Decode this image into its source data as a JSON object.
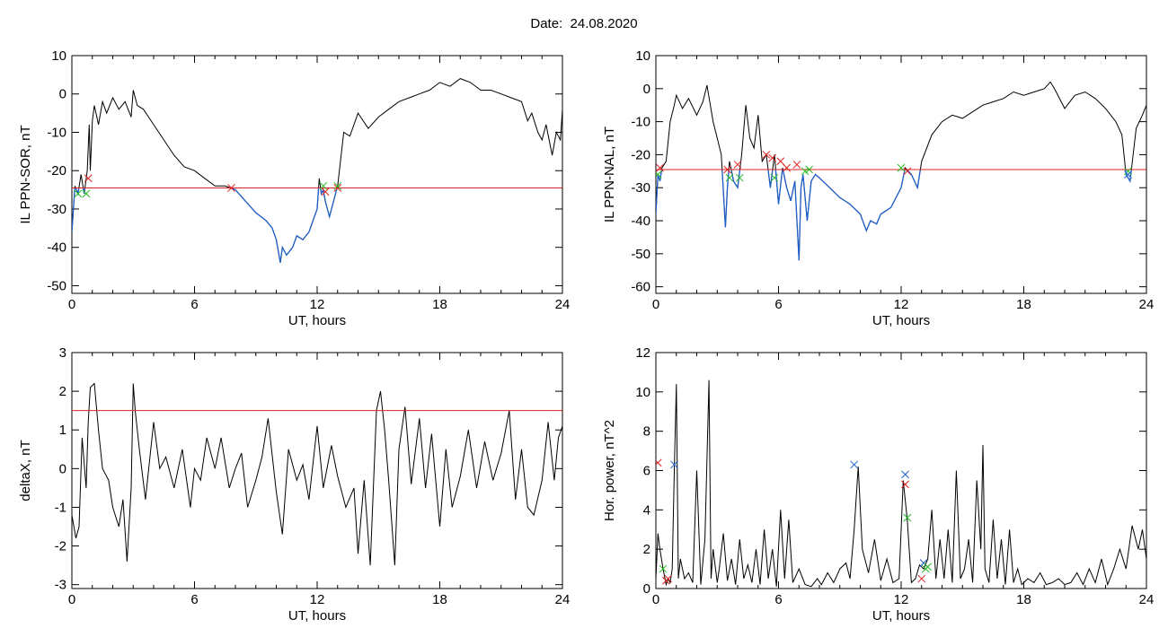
{
  "page": {
    "title": "Date:  24.08.2020"
  },
  "colors": {
    "trace": "#000000",
    "below": "#1f5fc8",
    "threshold": "#e02020",
    "mark_red": "#e02020",
    "mark_green": "#22bb22",
    "mark_blue": "#2060d0"
  },
  "chart_data": [
    {
      "id": "p1",
      "type": "line",
      "ylabel": "IL PPN-SOR, nT",
      "xlabel": "UT, hours",
      "xlim": [
        0,
        24
      ],
      "xticks": [
        0,
        6,
        12,
        18,
        24
      ],
      "ylim": [
        -52,
        10
      ],
      "yticks": [
        10,
        0,
        -10,
        -20,
        -30,
        -40,
        -50
      ],
      "threshold": -24.5,
      "below_color": "blue",
      "series": [
        {
          "x": [
            0,
            0.15,
            0.3,
            0.45,
            0.6,
            0.75,
            0.85,
            0.9,
            1.0,
            1.1,
            1.3,
            1.5,
            1.7,
            2.0,
            2.3,
            2.6,
            2.9,
            3.0,
            3.2,
            3.5,
            4.0,
            4.5,
            5.0,
            5.5,
            6.0,
            6.5,
            7.0,
            7.5,
            8.0,
            8.5,
            9.0,
            9.5,
            9.8,
            10.0,
            10.2,
            10.3,
            10.5,
            10.8,
            11.0,
            11.3,
            11.6,
            11.8,
            12.0,
            12.1,
            12.2,
            12.3,
            12.4,
            12.5,
            12.6,
            12.8,
            13.0,
            13.3,
            13.6,
            14.0,
            14.5,
            15.0,
            15.5,
            16.0,
            16.5,
            17.0,
            17.5,
            18.0,
            18.5,
            19.0,
            19.5,
            20.0,
            20.5,
            21.0,
            21.5,
            22.0,
            22.3,
            22.5,
            22.8,
            23.0,
            23.2,
            23.5,
            23.7,
            23.9,
            24.0
          ],
          "y": [
            -36,
            -24,
            -26,
            -21,
            -26,
            -20,
            -8,
            -20,
            -7,
            -3,
            -8,
            -2,
            -5,
            -1,
            -4,
            -2,
            -6,
            1,
            -3,
            -4,
            -8,
            -12,
            -16,
            -19,
            -20,
            -22,
            -24,
            -24,
            -25,
            -28,
            -31,
            -33,
            -35,
            -38,
            -44,
            -40,
            -42,
            -40,
            -37,
            -38,
            -36,
            -33,
            -30,
            -22,
            -26,
            -25,
            -28,
            -30,
            -32,
            -28,
            -24,
            -10,
            -11,
            -5,
            -9,
            -6,
            -4,
            -2,
            -1,
            0,
            1,
            3,
            2,
            4,
            3,
            1,
            1,
            0,
            -1,
            -2,
            -7,
            -5,
            -10,
            -12,
            -8,
            -16,
            -10,
            -12,
            -4
          ]
        }
      ],
      "markers": [
        {
          "x": 0.3,
          "y": -26,
          "color": "green"
        },
        {
          "x": 0.7,
          "y": -26,
          "color": "green"
        },
        {
          "x": 0.8,
          "y": -22,
          "color": "red"
        },
        {
          "x": 7.8,
          "y": -24.5,
          "color": "red"
        },
        {
          "x": 12.4,
          "y": -25.5,
          "color": "red"
        },
        {
          "x": 12.3,
          "y": -24,
          "color": "green"
        },
        {
          "x": 13.0,
          "y": -24.5,
          "color": "red"
        },
        {
          "x": 13.0,
          "y": -24,
          "color": "green"
        }
      ]
    },
    {
      "id": "p2",
      "type": "line",
      "ylabel": "IL PPN-NAL, nT",
      "xlabel": "UT, hours",
      "xlim": [
        0,
        24
      ],
      "xticks": [
        0,
        6,
        12,
        18,
        24
      ],
      "ylim": [
        -62,
        10
      ],
      "yticks": [
        10,
        0,
        -10,
        -20,
        -30,
        -40,
        -50,
        -60
      ],
      "threshold": -24.5,
      "below_color": "blue",
      "series": [
        {
          "x": [
            0,
            0.1,
            0.2,
            0.3,
            0.5,
            0.7,
            0.9,
            1.0,
            1.3,
            1.6,
            2.0,
            2.3,
            2.5,
            2.8,
            3.0,
            3.2,
            3.4,
            3.5,
            3.6,
            3.8,
            4.0,
            4.2,
            4.4,
            4.6,
            4.8,
            5.0,
            5.2,
            5.4,
            5.6,
            5.8,
            6.0,
            6.2,
            6.4,
            6.6,
            6.8,
            7.0,
            7.1,
            7.2,
            7.4,
            7.6,
            7.8,
            8.0,
            8.5,
            9.0,
            9.5,
            10.0,
            10.3,
            10.5,
            10.8,
            11.0,
            11.5,
            12.0,
            12.2,
            12.5,
            12.8,
            13.0,
            13.5,
            14.0,
            14.5,
            15.0,
            15.5,
            16.0,
            16.5,
            17.0,
            17.5,
            18.0,
            18.5,
            19.0,
            19.3,
            19.5,
            20.0,
            20.5,
            21.0,
            21.5,
            22.0,
            22.5,
            22.8,
            23.0,
            23.2,
            23.5,
            23.8,
            24.0
          ],
          "y": [
            -38,
            -26,
            -28,
            -24,
            -22,
            -10,
            -5,
            -2,
            -6,
            -3,
            -8,
            -4,
            1,
            -10,
            -15,
            -20,
            -42,
            -30,
            -22,
            -28,
            -30,
            -20,
            -5,
            -15,
            -18,
            -8,
            -22,
            -20,
            -30,
            -20,
            -35,
            -24,
            -30,
            -34,
            -28,
            -52,
            -30,
            -26,
            -40,
            -28,
            -26,
            -27,
            -30,
            -33,
            -35,
            -38,
            -43,
            -40,
            -41,
            -38,
            -36,
            -30,
            -24,
            -26,
            -30,
            -22,
            -14,
            -10,
            -8,
            -9,
            -7,
            -5,
            -4,
            -3,
            -1,
            -2,
            -1,
            0,
            2,
            0,
            -6,
            -2,
            -1,
            -3,
            -6,
            -10,
            -14,
            -26,
            -28,
            -12,
            -8,
            -5
          ]
        }
      ],
      "markers": [
        {
          "x": 0.1,
          "y": -26,
          "color": "green"
        },
        {
          "x": 0.2,
          "y": -24,
          "color": "red"
        },
        {
          "x": 3.5,
          "y": -24.5,
          "color": "red"
        },
        {
          "x": 3.6,
          "y": -27,
          "color": "green"
        },
        {
          "x": 4.0,
          "y": -23,
          "color": "red"
        },
        {
          "x": 4.1,
          "y": -27,
          "color": "green"
        },
        {
          "x": 5.4,
          "y": -20,
          "color": "red"
        },
        {
          "x": 5.7,
          "y": -21,
          "color": "red"
        },
        {
          "x": 5.8,
          "y": -27,
          "color": "green"
        },
        {
          "x": 6.1,
          "y": -22,
          "color": "red"
        },
        {
          "x": 6.4,
          "y": -24,
          "color": "red"
        },
        {
          "x": 6.9,
          "y": -23,
          "color": "red"
        },
        {
          "x": 7.3,
          "y": -25,
          "color": "green"
        },
        {
          "x": 7.5,
          "y": -24.5,
          "color": "green"
        },
        {
          "x": 12.0,
          "y": -24,
          "color": "green"
        },
        {
          "x": 12.3,
          "y": -25,
          "color": "red"
        },
        {
          "x": 23.1,
          "y": -25,
          "color": "green"
        },
        {
          "x": 23.1,
          "y": -26,
          "color": "blue"
        }
      ]
    },
    {
      "id": "p3",
      "type": "line",
      "ylabel": "deltaX, nT",
      "xlabel": "UT, hours",
      "xlim": [
        0,
        24
      ],
      "xticks": [
        0,
        6,
        12,
        18,
        24
      ],
      "ylim": [
        -3.1,
        3
      ],
      "yticks": [
        3,
        2,
        1,
        0,
        -1,
        -2,
        -3
      ],
      "threshold": 1.5,
      "below_color": "none",
      "series": [
        {
          "x": [
            0,
            0.2,
            0.35,
            0.5,
            0.7,
            0.8,
            0.9,
            1.1,
            1.3,
            1.5,
            1.8,
            2.0,
            2.3,
            2.5,
            2.7,
            2.9,
            3.0,
            3.1,
            3.3,
            3.6,
            4.0,
            4.3,
            4.6,
            5.0,
            5.4,
            5.8,
            6.0,
            6.3,
            6.6,
            7.0,
            7.3,
            7.7,
            8.0,
            8.3,
            8.6,
            9.0,
            9.3,
            9.6,
            10.0,
            10.3,
            10.6,
            11.0,
            11.3,
            11.6,
            12.0,
            12.3,
            12.7,
            13.0,
            13.4,
            13.8,
            14.0,
            14.3,
            14.6,
            14.9,
            15.1,
            15.3,
            15.5,
            15.8,
            16.0,
            16.3,
            16.6,
            17.0,
            17.3,
            17.6,
            18.0,
            18.3,
            18.6,
            19.0,
            19.4,
            19.8,
            20.2,
            20.6,
            21.0,
            21.4,
            21.7,
            22.0,
            22.3,
            22.6,
            23.0,
            23.3,
            23.6,
            23.8,
            24.0
          ],
          "y": [
            -1.2,
            -1.8,
            -1.5,
            0.8,
            -0.5,
            1.2,
            2.1,
            2.2,
            1.0,
            0.0,
            -0.3,
            -1.0,
            -1.5,
            -0.8,
            -2.4,
            -0.5,
            2.2,
            1.5,
            0.5,
            -0.8,
            1.2,
            0.0,
            0.3,
            -0.5,
            0.5,
            -1.0,
            0.0,
            -0.3,
            0.8,
            0.0,
            0.8,
            -0.5,
            0.0,
            0.4,
            -1.0,
            -0.3,
            0.3,
            1.3,
            -0.6,
            -1.7,
            0.5,
            -0.3,
            0.1,
            -0.8,
            1.1,
            -0.5,
            0.6,
            -0.2,
            -1.0,
            -0.5,
            -2.2,
            -0.3,
            -2.5,
            1.5,
            2.0,
            1.0,
            -0.3,
            -2.5,
            0.5,
            1.6,
            -0.4,
            1.3,
            -0.5,
            0.9,
            -1.5,
            0.5,
            -1.0,
            -0.2,
            1.0,
            -0.5,
            0.7,
            -0.3,
            0.4,
            1.5,
            -0.8,
            0.5,
            -1.0,
            -1.2,
            -0.3,
            1.2,
            -0.3,
            0.8,
            1.1
          ]
        }
      ],
      "markers": []
    },
    {
      "id": "p4",
      "type": "line",
      "ylabel": "Hor. power, nT^2",
      "xlabel": "UT, hours",
      "xlim": [
        0,
        24
      ],
      "xticks": [
        0,
        6,
        12,
        18,
        24
      ],
      "ylim": [
        0,
        12
      ],
      "yticks": [
        0,
        2,
        4,
        6,
        8,
        10,
        12
      ],
      "threshold": null,
      "below_color": "none",
      "series": [
        {
          "x": [
            0,
            0.1,
            0.2,
            0.35,
            0.5,
            0.6,
            0.7,
            0.8,
            0.9,
            1.0,
            1.1,
            1.2,
            1.4,
            1.6,
            1.8,
            2.0,
            2.2,
            2.4,
            2.6,
            2.7,
            2.8,
            3.0,
            3.1,
            3.3,
            3.5,
            3.7,
            3.9,
            4.1,
            4.3,
            4.5,
            4.7,
            4.9,
            5.1,
            5.3,
            5.5,
            5.7,
            5.9,
            6.1,
            6.3,
            6.5,
            6.7,
            7.0,
            7.3,
            7.6,
            7.9,
            8.1,
            8.4,
            8.7,
            9.0,
            9.3,
            9.5,
            9.7,
            9.9,
            10.1,
            10.4,
            10.7,
            11.0,
            11.3,
            11.6,
            11.9,
            12.1,
            12.3,
            12.5,
            12.7,
            12.9,
            13.1,
            13.3,
            13.5,
            13.7,
            13.9,
            14.1,
            14.3,
            14.5,
            14.7,
            14.9,
            15.1,
            15.3,
            15.5,
            15.7,
            15.9,
            16.0,
            16.1,
            16.3,
            16.5,
            16.7,
            16.9,
            17.1,
            17.3,
            17.5,
            17.7,
            17.9,
            18.2,
            18.5,
            18.8,
            19.1,
            19.4,
            19.7,
            20.0,
            20.3,
            20.6,
            20.9,
            21.2,
            21.5,
            21.8,
            22.1,
            22.4,
            22.7,
            23.0,
            23.3,
            23.6,
            23.8,
            24.0
          ],
          "y": [
            0.5,
            2.8,
            2.0,
            1.0,
            0.2,
            0.5,
            0.3,
            1.0,
            6.0,
            10.4,
            0.5,
            1.5,
            0.5,
            0.8,
            0.3,
            6.0,
            0.2,
            2.5,
            10.6,
            0.5,
            2.0,
            0.3,
            1.0,
            2.8,
            0.4,
            1.5,
            0.2,
            2.5,
            0.5,
            1.2,
            0.3,
            2.0,
            0.2,
            3.0,
            0.5,
            2.0,
            0.1,
            4.0,
            0.5,
            3.5,
            0.3,
            1.0,
            0.2,
            0.1,
            0.5,
            0.2,
            0.8,
            0.3,
            1.0,
            1.3,
            0.5,
            3.0,
            6.2,
            2.0,
            0.8,
            2.5,
            0.4,
            1.5,
            0.3,
            0.5,
            5.5,
            3.5,
            0.3,
            0.5,
            1.2,
            1.0,
            1.5,
            4.0,
            0.5,
            2.5,
            0.5,
            3.0,
            0.3,
            6.0,
            0.5,
            1.0,
            2.5,
            0.3,
            5.5,
            2.0,
            7.3,
            1.0,
            0.3,
            3.5,
            0.5,
            2.5,
            0.2,
            3.0,
            0.3,
            1.0,
            0.2,
            0.5,
            0.3,
            0.8,
            0.2,
            0.3,
            0.5,
            0.2,
            0.3,
            0.8,
            0.2,
            1.0,
            0.3,
            1.5,
            0.2,
            1.0,
            2.0,
            1.0,
            3.2,
            2.0,
            3.0,
            1.5
          ]
        }
      ],
      "markers": [
        {
          "x": 0.1,
          "y": 6.4,
          "color": "red"
        },
        {
          "x": 0.35,
          "y": 1.0,
          "color": "green"
        },
        {
          "x": 0.5,
          "y": 0.4,
          "color": "red"
        },
        {
          "x": 0.6,
          "y": 0.5,
          "color": "red"
        },
        {
          "x": 0.9,
          "y": 6.3,
          "color": "blue"
        },
        {
          "x": 9.7,
          "y": 6.3,
          "color": "blue"
        },
        {
          "x": 12.2,
          "y": 5.8,
          "color": "blue"
        },
        {
          "x": 12.2,
          "y": 5.3,
          "color": "red"
        },
        {
          "x": 12.3,
          "y": 3.6,
          "color": "green"
        },
        {
          "x": 13.0,
          "y": 0.5,
          "color": "red"
        },
        {
          "x": 13.1,
          "y": 1.3,
          "color": "blue"
        },
        {
          "x": 13.2,
          "y": 1.0,
          "color": "green"
        },
        {
          "x": 13.3,
          "y": 1.1,
          "color": "green"
        }
      ]
    }
  ]
}
